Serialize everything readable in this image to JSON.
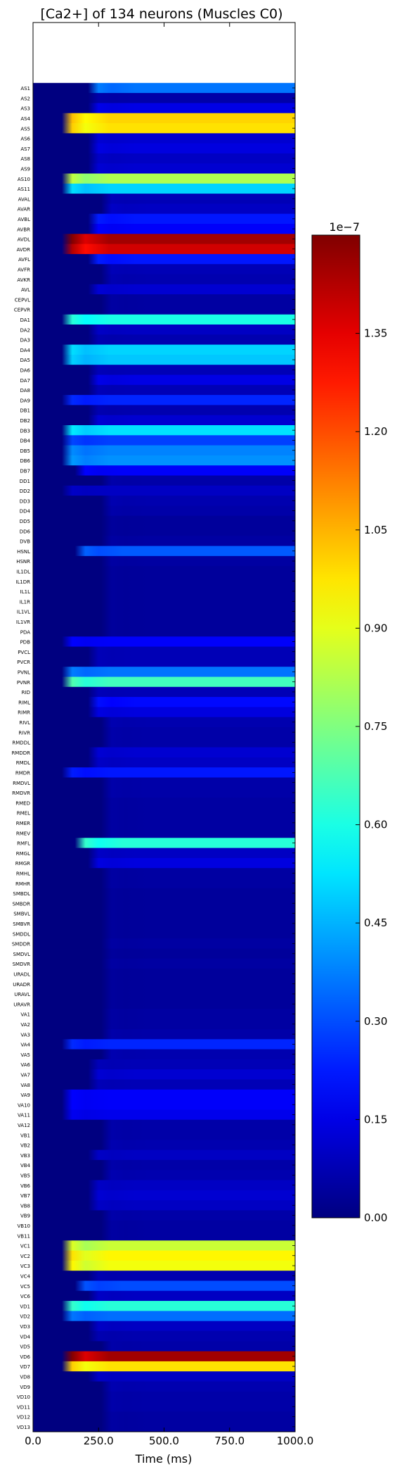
{
  "chart_data": {
    "type": "heatmap",
    "title": "[Ca2+] of 134 neurons (Muscles C0)",
    "xlabel": "Time (ms)",
    "ylabel": "",
    "xlim": [
      0,
      1000
    ],
    "x_ticks": [
      "0.0",
      "250.0",
      "500.0",
      "750.0",
      "1000.0"
    ],
    "colormap": "jet",
    "colorbar": {
      "exponent_label": "1e−7",
      "vmin": 0.0,
      "vmax": 1.5,
      "ticks": [
        "0.00",
        "0.15",
        "0.30",
        "0.45",
        "0.60",
        "0.75",
        "0.90",
        "1.05",
        "1.20",
        "1.35"
      ]
    },
    "value_units_note": "cell values are steady-state [Ca2+] x 1e-7, rising from 0 around t=150-300 ms",
    "empty_top_rows": 6,
    "rows": [
      {
        "label": "AS1",
        "value": 0.36,
        "onset": 250
      },
      {
        "label": "AS2",
        "value": 0.06,
        "onset": 250
      },
      {
        "label": "AS3",
        "value": 0.15,
        "onset": 250
      },
      {
        "label": "AS4",
        "value": 1.0,
        "onset": 150
      },
      {
        "label": "AS5",
        "value": 0.98,
        "onset": 150
      },
      {
        "label": "AS6",
        "value": 0.12,
        "onset": 250
      },
      {
        "label": "AS7",
        "value": 0.14,
        "onset": 250
      },
      {
        "label": "AS8",
        "value": 0.1,
        "onset": 250
      },
      {
        "label": "AS9",
        "value": 0.12,
        "onset": 250
      },
      {
        "label": "AS10",
        "value": 0.82,
        "onset": 150
      },
      {
        "label": "AS11",
        "value": 0.5,
        "onset": 150
      },
      {
        "label": "AVAL",
        "value": 0.08,
        "onset": 300
      },
      {
        "label": "AVAR",
        "value": 0.1,
        "onset": 300
      },
      {
        "label": "AVBL",
        "value": 0.22,
        "onset": 250
      },
      {
        "label": "AVBR",
        "value": 0.18,
        "onset": 250
      },
      {
        "label": "AVDL",
        "value": 1.45,
        "onset": 150
      },
      {
        "label": "AVDR",
        "value": 1.38,
        "onset": 150
      },
      {
        "label": "AVFL",
        "value": 0.22,
        "onset": 250
      },
      {
        "label": "AVFR",
        "value": 0.08,
        "onset": 300
      },
      {
        "label": "AVKR",
        "value": 0.07,
        "onset": 300
      },
      {
        "label": "AVL",
        "value": 0.12,
        "onset": 250
      },
      {
        "label": "CEPVL",
        "value": 0.05,
        "onset": 300
      },
      {
        "label": "CEPVR",
        "value": 0.05,
        "onset": 300
      },
      {
        "label": "DA1",
        "value": 0.6,
        "onset": 150
      },
      {
        "label": "DA2",
        "value": 0.1,
        "onset": 250
      },
      {
        "label": "DA3",
        "value": 0.07,
        "onset": 250
      },
      {
        "label": "DA4",
        "value": 0.5,
        "onset": 150
      },
      {
        "label": "DA5",
        "value": 0.48,
        "onset": 150
      },
      {
        "label": "DA6",
        "value": 0.08,
        "onset": 250
      },
      {
        "label": "DA7",
        "value": 0.15,
        "onset": 250
      },
      {
        "label": "DA8",
        "value": 0.08,
        "onset": 250
      },
      {
        "label": "DA9",
        "value": 0.24,
        "onset": 150
      },
      {
        "label": "DB1",
        "value": 0.07,
        "onset": 250
      },
      {
        "label": "DB2",
        "value": 0.12,
        "onset": 250
      },
      {
        "label": "DB3",
        "value": 0.52,
        "onset": 150
      },
      {
        "label": "DB4",
        "value": 0.28,
        "onset": 150
      },
      {
        "label": "DB5",
        "value": 0.38,
        "onset": 150
      },
      {
        "label": "DB6",
        "value": 0.4,
        "onset": 150
      },
      {
        "label": "DB7",
        "value": 0.18,
        "onset": 200
      },
      {
        "label": "DD1",
        "value": 0.06,
        "onset": 300
      },
      {
        "label": "DD2",
        "value": 0.1,
        "onset": 150
      },
      {
        "label": "DD3",
        "value": 0.07,
        "onset": 300
      },
      {
        "label": "DD4",
        "value": 0.06,
        "onset": 300
      },
      {
        "label": "DD5",
        "value": 0.04,
        "onset": 300
      },
      {
        "label": "DD6",
        "value": 0.04,
        "onset": 300
      },
      {
        "label": "DVB",
        "value": 0.05,
        "onset": 300
      },
      {
        "label": "HSNL",
        "value": 0.32,
        "onset": 200
      },
      {
        "label": "HSNR",
        "value": 0.05,
        "onset": 300
      },
      {
        "label": "IL1DL",
        "value": 0.04,
        "onset": 300
      },
      {
        "label": "IL1DR",
        "value": 0.04,
        "onset": 300
      },
      {
        "label": "IL1L",
        "value": 0.04,
        "onset": 300
      },
      {
        "label": "IL1R",
        "value": 0.04,
        "onset": 300
      },
      {
        "label": "IL1VL",
        "value": 0.04,
        "onset": 300
      },
      {
        "label": "IL1VR",
        "value": 0.04,
        "onset": 300
      },
      {
        "label": "PDA",
        "value": 0.04,
        "onset": 300
      },
      {
        "label": "PDB",
        "value": 0.18,
        "onset": 150
      },
      {
        "label": "PVCL",
        "value": 0.08,
        "onset": 250
      },
      {
        "label": "PVCR",
        "value": 0.08,
        "onset": 250
      },
      {
        "label": "PVNL",
        "value": 0.36,
        "onset": 150
      },
      {
        "label": "PVNR",
        "value": 0.66,
        "onset": 150
      },
      {
        "label": "RID",
        "value": 0.08,
        "onset": 250
      },
      {
        "label": "RIML",
        "value": 0.2,
        "onset": 250
      },
      {
        "label": "RIMR",
        "value": 0.14,
        "onset": 250
      },
      {
        "label": "RIVL",
        "value": 0.07,
        "onset": 300
      },
      {
        "label": "RIVR",
        "value": 0.06,
        "onset": 300
      },
      {
        "label": "RMDDL",
        "value": 0.06,
        "onset": 300
      },
      {
        "label": "RMDDR",
        "value": 0.12,
        "onset": 250
      },
      {
        "label": "RMDL",
        "value": 0.1,
        "onset": 250
      },
      {
        "label": "RMDR",
        "value": 0.22,
        "onset": 150
      },
      {
        "label": "RMDVL",
        "value": 0.06,
        "onset": 300
      },
      {
        "label": "RMDVR",
        "value": 0.06,
        "onset": 300
      },
      {
        "label": "RMED",
        "value": 0.05,
        "onset": 300
      },
      {
        "label": "RMEL",
        "value": 0.05,
        "onset": 300
      },
      {
        "label": "RMER",
        "value": 0.05,
        "onset": 300
      },
      {
        "label": "RMEV",
        "value": 0.05,
        "onset": 300
      },
      {
        "label": "RMFL",
        "value": 0.62,
        "onset": 200
      },
      {
        "label": "RMGL",
        "value": 0.1,
        "onset": 250
      },
      {
        "label": "RMGR",
        "value": 0.14,
        "onset": 250
      },
      {
        "label": "RMHL",
        "value": 0.05,
        "onset": 300
      },
      {
        "label": "RMHR",
        "value": 0.05,
        "onset": 300
      },
      {
        "label": "SMBDL",
        "value": 0.04,
        "onset": 300
      },
      {
        "label": "SMBDR",
        "value": 0.04,
        "onset": 300
      },
      {
        "label": "SMBVL",
        "value": 0.04,
        "onset": 300
      },
      {
        "label": "SMBVR",
        "value": 0.04,
        "onset": 300
      },
      {
        "label": "SMDDL",
        "value": 0.04,
        "onset": 300
      },
      {
        "label": "SMDDR",
        "value": 0.05,
        "onset": 300
      },
      {
        "label": "SMDVL",
        "value": 0.04,
        "onset": 300
      },
      {
        "label": "SMDVR",
        "value": 0.05,
        "onset": 300
      },
      {
        "label": "URADL",
        "value": 0.04,
        "onset": 300
      },
      {
        "label": "URADR",
        "value": 0.04,
        "onset": 300
      },
      {
        "label": "URAVL",
        "value": 0.04,
        "onset": 300
      },
      {
        "label": "URAVR",
        "value": 0.04,
        "onset": 300
      },
      {
        "label": "VA1",
        "value": 0.05,
        "onset": 300
      },
      {
        "label": "VA2",
        "value": 0.05,
        "onset": 300
      },
      {
        "label": "VA3",
        "value": 0.06,
        "onset": 300
      },
      {
        "label": "VA4",
        "value": 0.24,
        "onset": 150
      },
      {
        "label": "VA5",
        "value": 0.07,
        "onset": 300
      },
      {
        "label": "VA6",
        "value": 0.08,
        "onset": 250
      },
      {
        "label": "VA7",
        "value": 0.12,
        "onset": 250
      },
      {
        "label": "VA8",
        "value": 0.08,
        "onset": 250
      },
      {
        "label": "VA9",
        "value": 0.18,
        "onset": 150
      },
      {
        "label": "VA10",
        "value": 0.18,
        "onset": 150
      },
      {
        "label": "VA11",
        "value": 0.16,
        "onset": 150
      },
      {
        "label": "VA12",
        "value": 0.06,
        "onset": 300
      },
      {
        "label": "VB1",
        "value": 0.06,
        "onset": 300
      },
      {
        "label": "VB2",
        "value": 0.07,
        "onset": 300
      },
      {
        "label": "VB3",
        "value": 0.1,
        "onset": 250
      },
      {
        "label": "VB4",
        "value": 0.06,
        "onset": 300
      },
      {
        "label": "VB5",
        "value": 0.07,
        "onset": 300
      },
      {
        "label": "VB6",
        "value": 0.1,
        "onset": 250
      },
      {
        "label": "VB7",
        "value": 0.12,
        "onset": 250
      },
      {
        "label": "VB8",
        "value": 0.1,
        "onset": 250
      },
      {
        "label": "VB9",
        "value": 0.06,
        "onset": 300
      },
      {
        "label": "VB10",
        "value": 0.05,
        "onset": 300
      },
      {
        "label": "VB11",
        "value": 0.05,
        "onset": 300
      },
      {
        "label": "VC1",
        "value": 0.86,
        "onset": 150
      },
      {
        "label": "VC2",
        "value": 0.95,
        "onset": 150
      },
      {
        "label": "VC3",
        "value": 0.92,
        "onset": 150
      },
      {
        "label": "VC4",
        "value": 0.07,
        "onset": 250
      },
      {
        "label": "VC5",
        "value": 0.3,
        "onset": 200
      },
      {
        "label": "VC6",
        "value": 0.1,
        "onset": 250
      },
      {
        "label": "VD1",
        "value": 0.62,
        "onset": 150
      },
      {
        "label": "VD2",
        "value": 0.35,
        "onset": 150
      },
      {
        "label": "VD3",
        "value": 0.1,
        "onset": 250
      },
      {
        "label": "VD4",
        "value": 0.07,
        "onset": 250
      },
      {
        "label": "VD5",
        "value": 0.06,
        "onset": 300
      },
      {
        "label": "VD6",
        "value": 1.45,
        "onset": 150
      },
      {
        "label": "VD7",
        "value": 0.98,
        "onset": 150
      },
      {
        "label": "VD8",
        "value": 0.1,
        "onset": 250
      },
      {
        "label": "VD9",
        "value": 0.07,
        "onset": 300
      },
      {
        "label": "VD10",
        "value": 0.06,
        "onset": 300
      },
      {
        "label": "VD11",
        "value": 0.06,
        "onset": 300
      },
      {
        "label": "VD12",
        "value": 0.05,
        "onset": 300
      },
      {
        "label": "VD13",
        "value": 0.05,
        "onset": 300
      }
    ]
  }
}
